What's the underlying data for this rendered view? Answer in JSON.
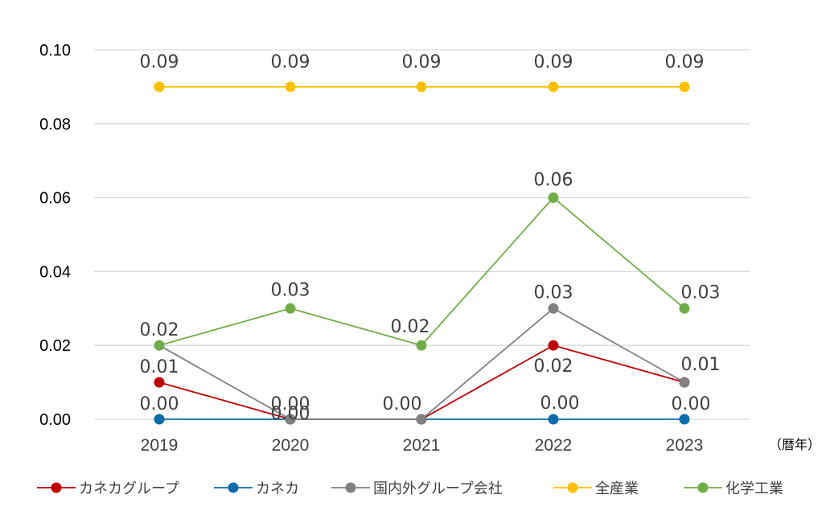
{
  "chart_data": {
    "type": "line",
    "categories": [
      "2019",
      "2020",
      "2021",
      "2022",
      "2023"
    ],
    "xunit": "（暦年）",
    "ylim": [
      0,
      0.1
    ],
    "yticks": [
      "0.00",
      "0.02",
      "0.04",
      "0.06",
      "0.08",
      "0.10"
    ],
    "grid": true,
    "legend_position": "bottom",
    "series": [
      {
        "name": "カネカグループ",
        "color": "#c00000",
        "values": [
          0.01,
          0.0,
          0.0,
          0.02,
          0.01
        ],
        "labels": [
          "0.01",
          "0.00",
          "",
          "0.02",
          ""
        ]
      },
      {
        "name": "カネカ",
        "color": "#0a6cad",
        "values": [
          0.0,
          0.0,
          0.0,
          0.0,
          0.0
        ],
        "labels": [
          "0.00",
          "",
          "0.00",
          "0.00",
          "0.00"
        ]
      },
      {
        "name": "国内外グループ会社",
        "color": "#808080",
        "values": [
          0.02,
          0.0,
          0.0,
          0.03,
          0.01
        ],
        "labels": [
          "",
          "0.00",
          "",
          "0.03",
          "0.01"
        ]
      },
      {
        "name": "全産業",
        "color": "#ffc000",
        "values": [
          0.09,
          0.09,
          0.09,
          0.09,
          0.09
        ],
        "labels": [
          "0.09",
          "0.09",
          "0.09",
          "0.09",
          "0.09"
        ]
      },
      {
        "name": "化学工業",
        "color": "#70ad47",
        "values": [
          0.02,
          0.03,
          0.02,
          0.06,
          0.03
        ],
        "labels": [
          "0.02",
          "0.03",
          "0.02",
          "0.06",
          "0.03"
        ]
      }
    ]
  }
}
